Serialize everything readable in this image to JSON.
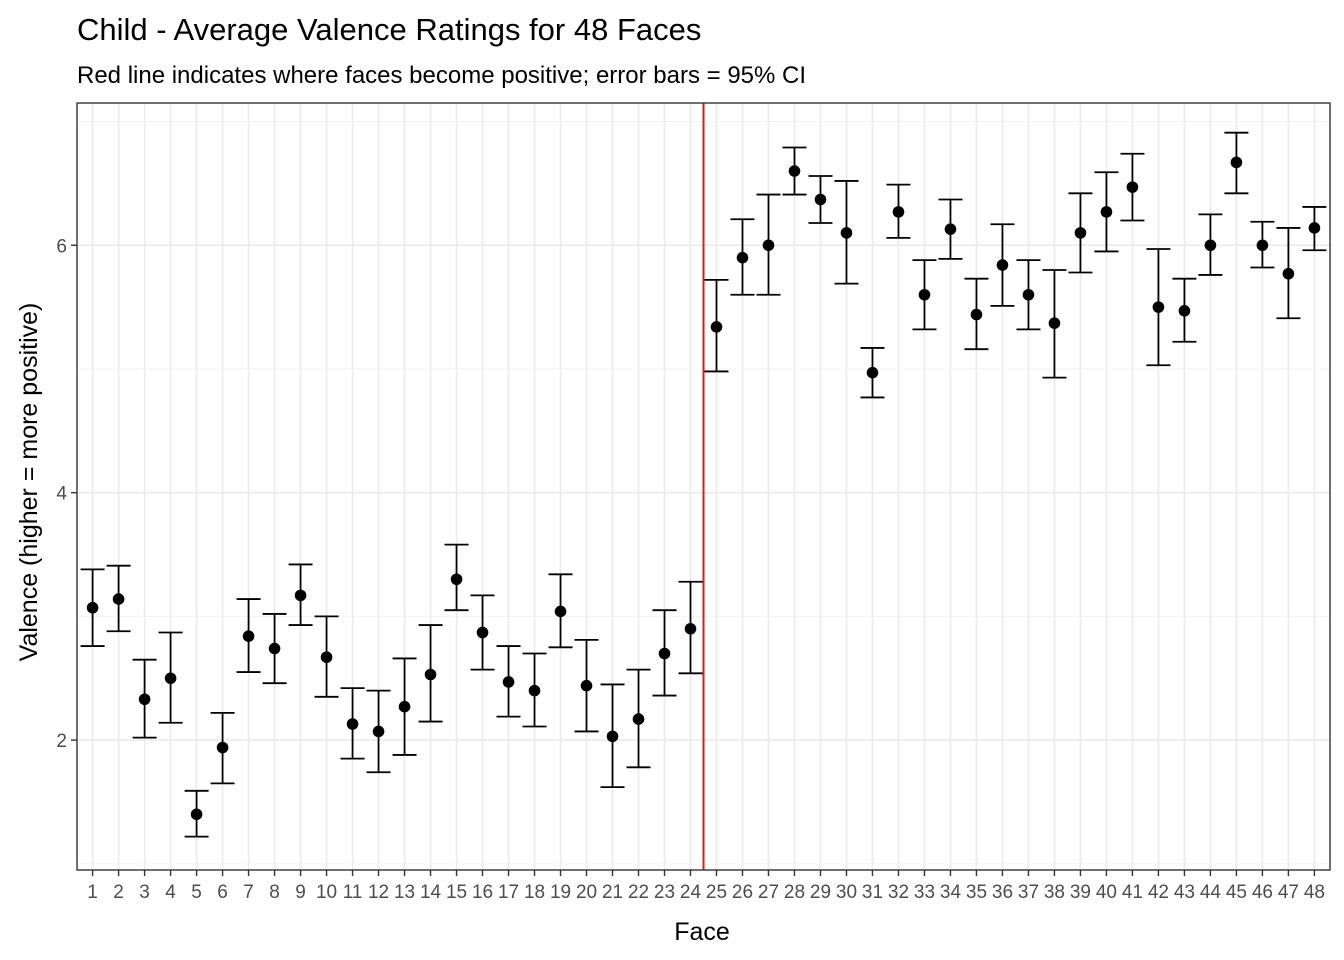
{
  "chart_data": {
    "type": "scatter",
    "title": "Child - Average Valence Ratings for 48 Faces",
    "subtitle": "Red line indicates where faces become positive; error bars = 95% CI",
    "xlabel": "Face",
    "ylabel": "Valence (higher = more positive)",
    "categories": [
      "1",
      "2",
      "3",
      "4",
      "5",
      "6",
      "7",
      "8",
      "9",
      "10",
      "11",
      "12",
      "13",
      "14",
      "15",
      "16",
      "17",
      "18",
      "19",
      "20",
      "21",
      "22",
      "23",
      "24",
      "25",
      "26",
      "27",
      "28",
      "29",
      "30",
      "31",
      "32",
      "33",
      "34",
      "35",
      "36",
      "37",
      "38",
      "39",
      "40",
      "41",
      "42",
      "43",
      "44",
      "45",
      "46",
      "47",
      "48"
    ],
    "values": [
      3.07,
      3.14,
      2.33,
      2.5,
      1.4,
      1.94,
      2.84,
      2.74,
      3.17,
      2.67,
      2.13,
      2.07,
      2.27,
      2.53,
      3.3,
      2.87,
      2.47,
      2.4,
      3.04,
      2.44,
      2.03,
      2.17,
      2.7,
      2.9,
      5.34,
      5.9,
      6.0,
      6.6,
      6.37,
      6.1,
      4.97,
      6.27,
      5.6,
      6.13,
      5.44,
      5.84,
      5.6,
      5.37,
      6.1,
      6.27,
      6.47,
      5.5,
      5.47,
      6.0,
      6.67,
      6.0,
      5.77,
      6.14
    ],
    "ci_lower": [
      2.76,
      2.88,
      2.02,
      2.14,
      1.22,
      1.65,
      2.55,
      2.46,
      2.93,
      2.35,
      1.85,
      1.74,
      1.88,
      2.15,
      3.05,
      2.57,
      2.19,
      2.11,
      2.75,
      2.07,
      1.62,
      1.78,
      2.36,
      2.54,
      4.98,
      5.6,
      5.6,
      6.41,
      6.18,
      5.69,
      4.77,
      6.06,
      5.32,
      5.89,
      5.16,
      5.51,
      5.32,
      4.93,
      5.78,
      5.95,
      6.2,
      5.03,
      5.22,
      5.76,
      6.42,
      5.82,
      5.41,
      5.96
    ],
    "ci_upper": [
      3.38,
      3.41,
      2.65,
      2.87,
      1.59,
      2.22,
      3.14,
      3.02,
      3.42,
      3.0,
      2.42,
      2.4,
      2.66,
      2.93,
      3.58,
      3.17,
      2.76,
      2.7,
      3.34,
      2.81,
      2.45,
      2.57,
      3.05,
      3.28,
      5.72,
      6.21,
      6.41,
      6.79,
      6.56,
      6.52,
      5.17,
      6.49,
      5.88,
      6.37,
      5.73,
      6.17,
      5.88,
      5.8,
      6.42,
      6.59,
      6.74,
      5.97,
      5.73,
      6.25,
      6.91,
      6.19,
      6.14,
      6.31
    ],
    "y_ticks": [
      2,
      4,
      6
    ],
    "ylim": [
      0.95,
      7.15
    ],
    "xlim": [
      0.4,
      48.6
    ],
    "reference_line": {
      "orientation": "vertical",
      "x": 24.5,
      "color": "#e31a1c"
    },
    "point_color": "#000000",
    "grid": true,
    "legend": "none"
  }
}
